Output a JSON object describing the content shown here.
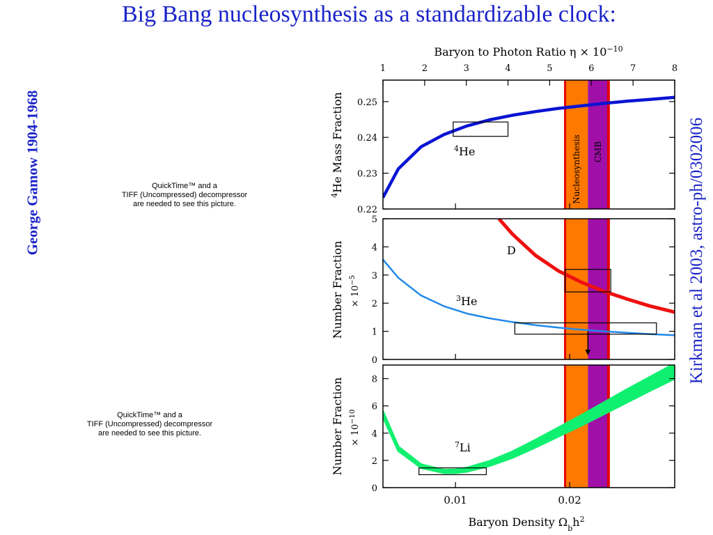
{
  "slide": {
    "title": "Big Bang nucleosynthesis as a standardizable clock:",
    "left_vertical_text": "George Gamow 1904-1968",
    "right_vertical_text": "Kirkman et al 2003, astro-ph/0302006",
    "placeholders": [
      [
        "QuickTime™ and a",
        "TIFF (Uncompressed) decompressor",
        "are needed to see this picture."
      ],
      [
        "QuickTime™ and a",
        "TIFF (Uncompressed) decompressor",
        "are needed to see this picture."
      ]
    ]
  },
  "chart_data": {
    "type": "line",
    "top_axis": {
      "label": "Baryon to Photon Ratio η × 10",
      "exponent": "−10",
      "ticks": [
        "1",
        "2",
        "3",
        "4",
        "5",
        "6",
        "7",
        "8"
      ]
    },
    "bottom_axis": {
      "label": "Baryon Density Ω",
      "sub": "b",
      "tail": "h",
      "sup": "2",
      "ticks": [
        "0.01",
        "0.02"
      ],
      "range": [
        0.00365,
        0.0292
      ]
    },
    "bands": [
      {
        "name": "Nucleosynthesis",
        "range": [
          0.0196,
          0.0216
        ],
        "color": "#ff7800"
      },
      {
        "name": "CMB",
        "range": [
          0.0216,
          0.0234
        ],
        "color": "#a010a8"
      }
    ],
    "band_edges_color": "#e60000",
    "panels": [
      {
        "ylabel": "He Mass Fraction",
        "ylabel_sup": "4",
        "ylim": [
          0.22,
          0.256
        ],
        "yticks": [
          "0.22",
          "0.23",
          "0.24",
          "0.25"
        ],
        "curves": [
          {
            "name": "He",
            "sup": "4",
            "color": "#0a14d2",
            "x": [
              0.00365,
              0.005,
              0.007,
              0.009,
              0.011,
              0.013,
              0.015,
              0.017,
              0.019,
              0.021,
              0.023,
              0.025,
              0.027,
              0.0292
            ],
            "y": [
              0.2232,
              0.2312,
              0.2374,
              0.2408,
              0.2432,
              0.2449,
              0.2462,
              0.2472,
              0.2481,
              0.2488,
              0.2495,
              0.2501,
              0.2506,
              0.2512
            ]
          }
        ],
        "boxes": [
          {
            "x": [
              0.0098,
              0.0146
            ],
            "y": [
              0.2403,
              0.2443
            ]
          }
        ]
      },
      {
        "ylabel": "Number Fraction",
        "ylabel2": "× 10",
        "ylabel2_sup": "−5",
        "ylim": [
          0,
          5
        ],
        "yticks": [
          "0",
          "1",
          "2",
          "3",
          "4",
          "5"
        ],
        "curves": [
          {
            "name": "D",
            "color": "#ee1010",
            "x": [
              0.0138,
              0.015,
              0.017,
              0.019,
              0.021,
              0.023,
              0.025,
              0.027,
              0.0292
            ],
            "y": [
              5.0,
              4.45,
              3.7,
              3.15,
              2.75,
              2.42,
              2.15,
              1.9,
              1.68
            ]
          },
          {
            "name": "He",
            "sup": "3",
            "color": "#2088e8",
            "x": [
              0.00365,
              0.005,
              0.007,
              0.009,
              0.011,
              0.013,
              0.015,
              0.017,
              0.019,
              0.021,
              0.023,
              0.025,
              0.027,
              0.0292
            ],
            "y": [
              3.55,
              2.9,
              2.27,
              1.89,
              1.63,
              1.46,
              1.33,
              1.22,
              1.13,
              1.06,
              1.0,
              0.95,
              0.9,
              0.86
            ]
          }
        ],
        "boxes": [
          {
            "x": [
              0.0196,
              0.0236
            ],
            "y": [
              2.4,
              3.2
            ]
          },
          {
            "x": [
              0.0152,
              0.0276
            ],
            "y": [
              0.9,
              1.3
            ]
          }
        ],
        "arrow": {
          "x": 0.0216,
          "y": [
            1.0,
            0.15
          ]
        }
      },
      {
        "ylabel": "Number Fraction",
        "ylabel2": "× 10",
        "ylabel2_sup": "−10",
        "ylim": [
          0,
          9
        ],
        "yticks": [
          "0",
          "2",
          "4",
          "6",
          "8"
        ],
        "curves": [
          {
            "name": "Li",
            "sup": "7",
            "color": "#10f070",
            "band": true,
            "x": [
              0.00365,
              0.005,
              0.007,
              0.009,
              0.01,
              0.011,
              0.013,
              0.015,
              0.017,
              0.019,
              0.021,
              0.023,
              0.025,
              0.027,
              0.0292
            ],
            "y_low": [
              5.2,
              2.7,
              1.45,
              1.08,
              1.08,
              1.18,
              1.6,
              2.2,
              2.95,
              3.75,
              4.55,
              5.4,
              6.25,
              7.1,
              8.0
            ],
            "y_high": [
              5.6,
              3.0,
              1.7,
              1.3,
              1.32,
              1.45,
              1.95,
              2.65,
              3.5,
              4.4,
              5.3,
              6.25,
              7.2,
              8.1,
              9.1
            ]
          }
        ],
        "boxes": [
          {
            "x": [
              0.0068,
              0.0127
            ],
            "y": [
              0.95,
              1.45
            ]
          }
        ]
      }
    ]
  }
}
